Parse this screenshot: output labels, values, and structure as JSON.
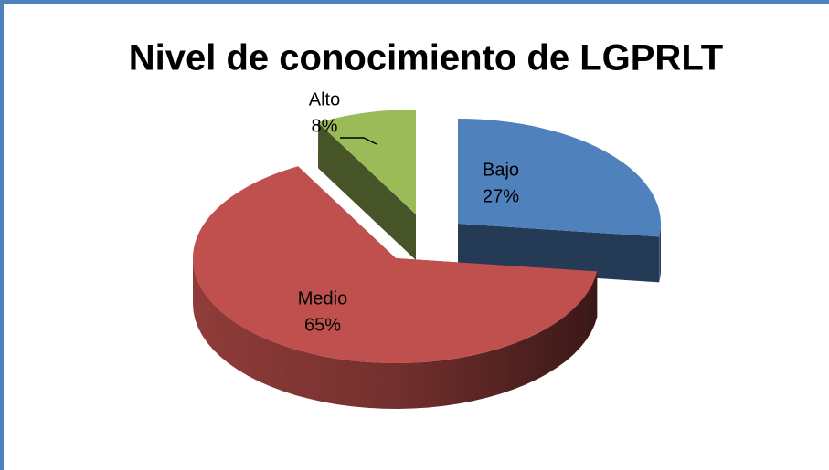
{
  "chart_data": {
    "type": "pie",
    "title": "Nivel de conocimiento de LGPRLT",
    "categories": [
      "Bajo",
      "Medio",
      "Alto"
    ],
    "values": [
      27,
      65,
      8
    ],
    "value_labels": [
      "27%",
      "65%",
      "8%"
    ],
    "colors": [
      "#4f81bd",
      "#c0504d",
      "#9bbb59"
    ]
  }
}
